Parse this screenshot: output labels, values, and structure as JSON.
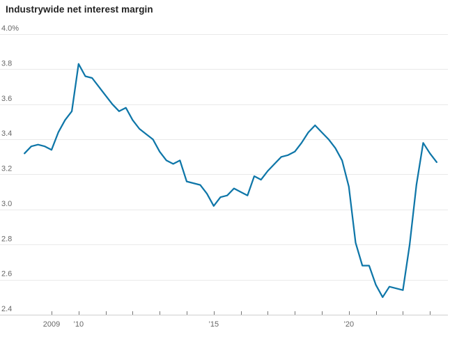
{
  "title": "Industrywide net interest margin",
  "colors": {
    "line": "#0e76a8",
    "gridline": "#e9e9e9",
    "baseline": "#cfcfcf",
    "tick": "#777777",
    "axis_text": "#666666",
    "title_text": "#222222",
    "background": "#ffffff"
  },
  "chart_data": {
    "type": "line",
    "title": "Industrywide net interest margin",
    "series_name": "Industrywide net interest margin (%)",
    "x_unit": "quarter",
    "grid": "horizontal",
    "legend": "none",
    "ylim": [
      2.4,
      4.0
    ],
    "xlim": [
      2008.0,
      2023.75
    ],
    "y_ticks": [
      {
        "value": 4.0,
        "label": "4.0%"
      },
      {
        "value": 3.8,
        "label": "3.8"
      },
      {
        "value": 3.6,
        "label": "3.6"
      },
      {
        "value": 3.4,
        "label": "3.4"
      },
      {
        "value": 3.2,
        "label": "3.2"
      },
      {
        "value": 3.0,
        "label": "3.0"
      },
      {
        "value": 2.8,
        "label": "2.8"
      },
      {
        "value": 2.6,
        "label": "2.6"
      },
      {
        "value": 2.4,
        "label": "2.4"
      }
    ],
    "x_ticks": [
      {
        "year": 2009,
        "label": "2009"
      },
      {
        "year": 2010,
        "label": "’10"
      },
      {
        "year": 2011,
        "label": ""
      },
      {
        "year": 2012,
        "label": ""
      },
      {
        "year": 2013,
        "label": ""
      },
      {
        "year": 2014,
        "label": ""
      },
      {
        "year": 2015,
        "label": "’15"
      },
      {
        "year": 2016,
        "label": ""
      },
      {
        "year": 2017,
        "label": ""
      },
      {
        "year": 2018,
        "label": ""
      },
      {
        "year": 2019,
        "label": ""
      },
      {
        "year": 2020,
        "label": "’20"
      },
      {
        "year": 2021,
        "label": ""
      },
      {
        "year": 2022,
        "label": ""
      },
      {
        "year": 2023,
        "label": ""
      }
    ],
    "categories": [
      "2008 Q1",
      "2008 Q2",
      "2008 Q3",
      "2008 Q4",
      "2009 Q1",
      "2009 Q2",
      "2009 Q3",
      "2009 Q4",
      "2010 Q1",
      "2010 Q2",
      "2010 Q3",
      "2010 Q4",
      "2011 Q1",
      "2011 Q2",
      "2011 Q3",
      "2011 Q4",
      "2012 Q1",
      "2012 Q2",
      "2012 Q3",
      "2012 Q4",
      "2013 Q1",
      "2013 Q2",
      "2013 Q3",
      "2013 Q4",
      "2014 Q1",
      "2014 Q2",
      "2014 Q3",
      "2014 Q4",
      "2015 Q1",
      "2015 Q2",
      "2015 Q3",
      "2015 Q4",
      "2016 Q1",
      "2016 Q2",
      "2016 Q3",
      "2016 Q4",
      "2017 Q1",
      "2017 Q2",
      "2017 Q3",
      "2017 Q4",
      "2018 Q1",
      "2018 Q2",
      "2018 Q3",
      "2018 Q4",
      "2019 Q1",
      "2019 Q2",
      "2019 Q3",
      "2019 Q4",
      "2020 Q1",
      "2020 Q2",
      "2020 Q3",
      "2020 Q4",
      "2021 Q1",
      "2021 Q2",
      "2021 Q3",
      "2021 Q4",
      "2022 Q1",
      "2022 Q2",
      "2022 Q3",
      "2022 Q4",
      "2023 Q1",
      "2023 Q2"
    ],
    "values": [
      3.32,
      3.36,
      3.37,
      3.36,
      3.34,
      3.44,
      3.51,
      3.56,
      3.83,
      3.76,
      3.75,
      3.7,
      3.65,
      3.6,
      3.56,
      3.58,
      3.51,
      3.46,
      3.43,
      3.4,
      3.33,
      3.28,
      3.26,
      3.28,
      3.16,
      3.15,
      3.14,
      3.09,
      3.02,
      3.07,
      3.08,
      3.12,
      3.1,
      3.08,
      3.19,
      3.17,
      3.22,
      3.26,
      3.3,
      3.31,
      3.33,
      3.38,
      3.44,
      3.48,
      3.44,
      3.4,
      3.35,
      3.28,
      3.13,
      2.81,
      2.68,
      2.68,
      2.57,
      2.5,
      2.56,
      2.55,
      2.54,
      2.8,
      3.14,
      3.38,
      3.32,
      3.27
    ]
  }
}
